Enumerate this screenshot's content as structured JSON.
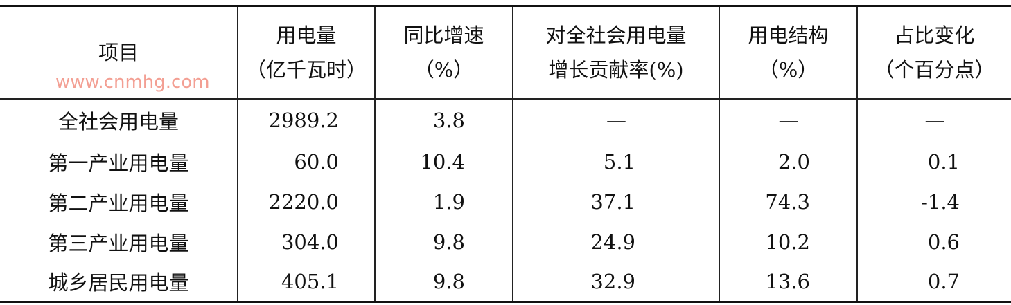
{
  "headers": [
    {
      "line1": "项目",
      "line2": ""
    },
    {
      "line1": "用电量",
      "line2": "（亿千瓦时）"
    },
    {
      "line1": "同比增速",
      "line2": "（%）"
    },
    {
      "line1": "对全社会用电量",
      "line2": "增长贡献率(%)"
    },
    {
      "line1": "用电结构",
      "line2": "（%）"
    },
    {
      "line1": "占比变化",
      "line2": "（个百分点）"
    }
  ],
  "rows": [
    [
      "全社会用电量",
      "2989.2",
      "3.8",
      "—",
      "—",
      "—"
    ],
    [
      "第一产业用电量",
      "60.0",
      "10.4",
      "5.1",
      "2.0",
      "0.1"
    ],
    [
      "第二产业用电量",
      "2220.0",
      "1.9",
      "37.1",
      "74.3",
      "-1.4"
    ],
    [
      "第三产业用电量",
      "304.0",
      "9.8",
      "24.9",
      "10.2",
      "0.6"
    ],
    [
      "城乡居民用电量",
      "405.1",
      "9.8",
      "32.9",
      "13.6",
      "0.7"
    ]
  ],
  "watermark": "www.cnmhg.com"
}
